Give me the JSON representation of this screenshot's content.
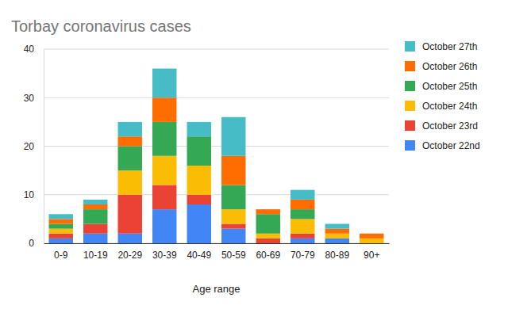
{
  "chart_data": {
    "type": "bar",
    "title": "Torbay coronavirus cases",
    "x_label": "Age range",
    "categories": [
      "0-9",
      "10-19",
      "20-29",
      "30-39",
      "40-49",
      "50-59",
      "60-69",
      "70-79",
      "80-89",
      "90+"
    ],
    "series": [
      {
        "name": "October 22nd",
        "color": "#4285f4",
        "values": [
          1,
          2,
          2,
          7,
          8,
          3,
          0,
          1,
          1,
          0
        ]
      },
      {
        "name": "October 23rd",
        "color": "#ea4335",
        "values": [
          1,
          2,
          8,
          5,
          2,
          1,
          1,
          1,
          0,
          0
        ]
      },
      {
        "name": "October 24th",
        "color": "#fbbc04",
        "values": [
          1,
          0,
          5,
          6,
          6,
          3,
          1,
          3,
          1,
          1
        ]
      },
      {
        "name": "October 25th",
        "color": "#34a853",
        "values": [
          1,
          3,
          5,
          7,
          6,
          5,
          4,
          2,
          0,
          0
        ]
      },
      {
        "name": "October 26th",
        "color": "#ff6d01",
        "values": [
          1,
          1,
          2,
          5,
          0,
          6,
          1,
          2,
          1,
          1
        ]
      },
      {
        "name": "October 27th",
        "color": "#46bdc6",
        "values": [
          1,
          1,
          3,
          6,
          3,
          8,
          0,
          2,
          1,
          0
        ]
      }
    ],
    "ylim": [
      0,
      40
    ],
    "yticks": [
      0,
      10,
      20,
      30,
      40
    ],
    "stacked": true,
    "grid": true,
    "legend": "right"
  }
}
